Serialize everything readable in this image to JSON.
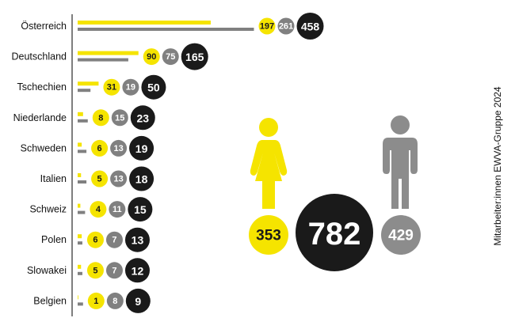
{
  "chart_data": {
    "type": "bar",
    "categories": [
      "Österreich",
      "Deutschland",
      "Tschechien",
      "Niederlande",
      "Schweden",
      "Italien",
      "Schweiz",
      "Polen",
      "Slowakei",
      "Belgien"
    ],
    "series": [
      {
        "values": [
          197,
          90,
          31,
          8,
          6,
          5,
          4,
          6,
          5,
          1
        ]
      },
      {
        "values": [
          261,
          75,
          19,
          15,
          13,
          13,
          11,
          7,
          7,
          8
        ]
      },
      {
        "values": [
          458,
          165,
          50,
          23,
          19,
          18,
          15,
          13,
          12,
          9
        ]
      }
    ],
    "totals": {
      "women": 353,
      "all": 782,
      "men": 429
    },
    "side_label": "Mitarbeiter:innen EWVA-Gruppe 2024",
    "colors": {
      "yellow": "#f5e400",
      "gray": "#808080",
      "black": "#1a1a1a"
    },
    "icons": [
      "female-figure-icon",
      "male-figure-icon"
    ]
  }
}
